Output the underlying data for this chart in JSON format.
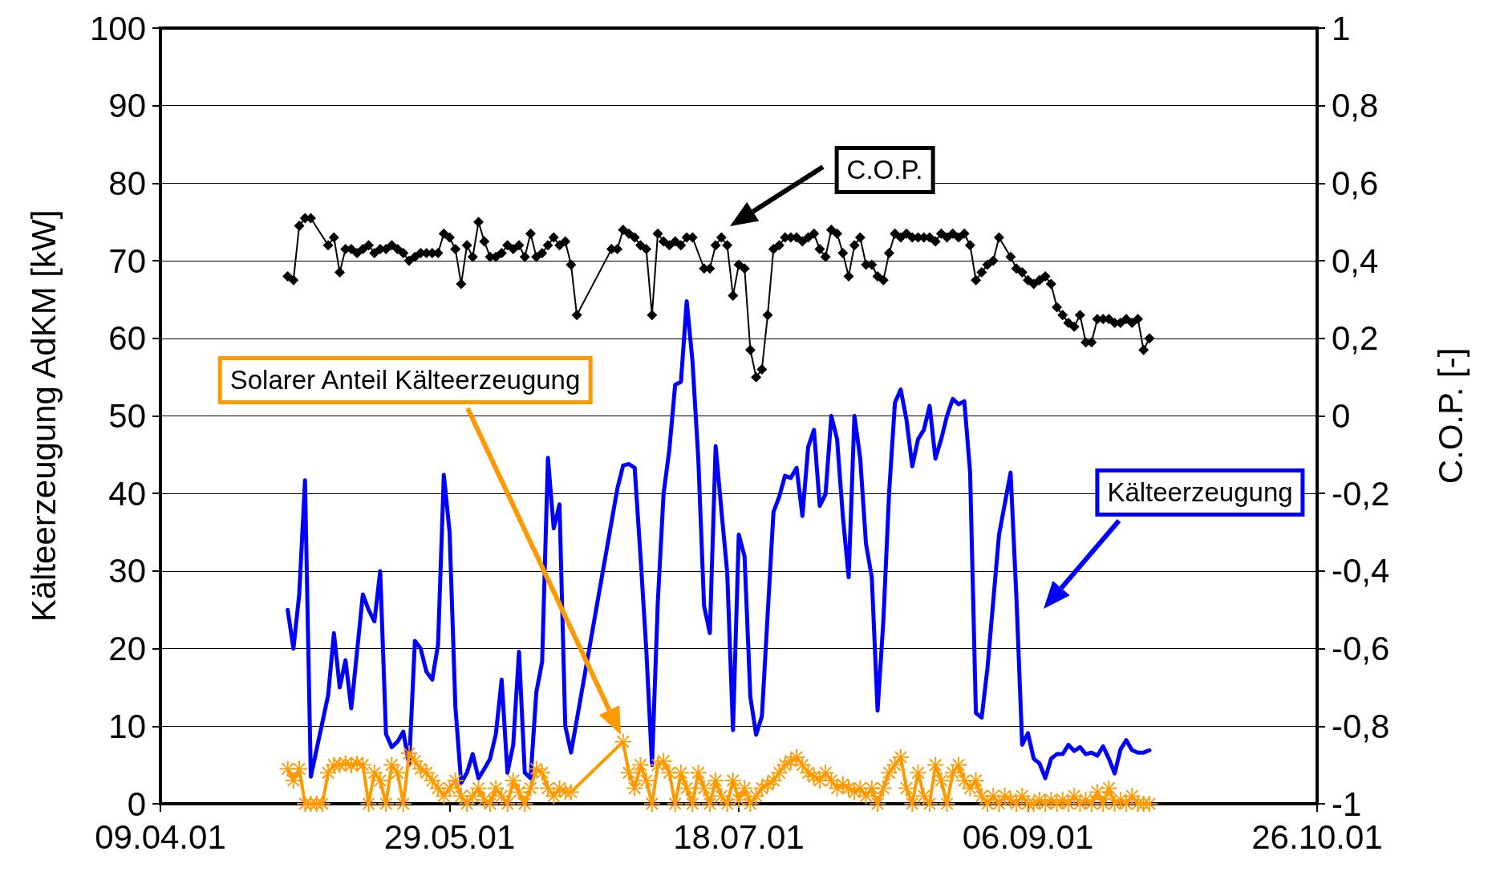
{
  "chart_data": {
    "type": "line",
    "ylabel": "Kälteerzeugung AdKM [kW]",
    "y2label": "C.O.P. [-]",
    "xlim": [
      "2001-04-09",
      "2001-10-26"
    ],
    "xticks": [
      {
        "value": "2001-04-09",
        "label": "09.04.01"
      },
      {
        "value": "2001-05-29",
        "label": "29.05.01"
      },
      {
        "value": "2001-07-18",
        "label": "18.07.01"
      },
      {
        "value": "2001-09-06",
        "label": "06.09.01"
      },
      {
        "value": "2001-10-26",
        "label": "26.10.01"
      }
    ],
    "ylim": [
      0,
      100
    ],
    "yticks": [
      0,
      10,
      20,
      30,
      40,
      50,
      60,
      70,
      80,
      90,
      100
    ],
    "y2lim": [
      -1,
      1
    ],
    "y2ticks": [
      -1,
      {
        "value": -0.8,
        "label": "-0,8"
      },
      {
        "value": -0.6,
        "label": "-0,6"
      },
      {
        "value": -0.4,
        "label": "-0,4"
      },
      {
        "value": -0.2,
        "label": "-0,2"
      },
      0,
      {
        "value": 0.2,
        "label": "0,2"
      },
      {
        "value": 0.4,
        "label": "0,4"
      },
      {
        "value": 0.6,
        "label": "0,6"
      },
      {
        "value": 0.8,
        "label": "0,8"
      },
      1
    ],
    "grid": "y",
    "series": [
      {
        "color": "#0000ff",
        "marker": "none",
        "x": [
          "2001-05-01",
          "2001-05-02",
          "2001-05-03",
          "2001-05-04",
          "2001-05-05",
          "2001-05-08",
          "2001-05-09",
          "2001-05-10",
          "2001-05-11",
          "2001-05-12",
          "2001-05-14",
          "2001-05-15",
          "2001-05-16",
          "2001-05-17",
          "2001-05-18",
          "2001-05-19",
          "2001-05-20",
          "2001-05-21",
          "2001-05-22",
          "2001-05-23",
          "2001-05-24",
          "2001-05-25",
          "2001-05-26",
          "2001-05-27",
          "2001-05-28",
          "2001-05-29",
          "2001-05-30",
          "2001-05-31",
          "2001-06-01",
          "2001-06-02",
          "2001-06-03",
          "2001-06-04",
          "2001-06-05",
          "2001-06-06",
          "2001-06-07",
          "2001-06-08",
          "2001-06-09",
          "2001-06-10",
          "2001-06-11",
          "2001-06-12",
          "2001-06-13",
          "2001-06-14",
          "2001-06-15",
          "2001-06-16",
          "2001-06-17",
          "2001-06-18",
          "2001-06-19",
          "2001-06-27",
          "2001-06-28",
          "2001-06-29",
          "2001-06-30",
          "2001-07-01",
          "2001-07-02",
          "2001-07-03",
          "2001-07-04",
          "2001-07-05",
          "2001-07-06",
          "2001-07-07",
          "2001-07-08",
          "2001-07-09",
          "2001-07-10",
          "2001-07-11",
          "2001-07-12",
          "2001-07-13",
          "2001-07-14",
          "2001-07-15",
          "2001-07-16",
          "2001-07-17",
          "2001-07-18",
          "2001-07-19",
          "2001-07-20",
          "2001-07-21",
          "2001-07-22",
          "2001-07-24",
          "2001-07-25",
          "2001-07-26",
          "2001-07-27",
          "2001-07-28",
          "2001-07-29",
          "2001-07-30",
          "2001-07-31",
          "2001-08-01",
          "2001-08-02",
          "2001-08-03",
          "2001-08-04",
          "2001-08-05",
          "2001-08-06",
          "2001-08-07",
          "2001-08-08",
          "2001-08-09",
          "2001-08-10",
          "2001-08-11",
          "2001-08-12",
          "2001-08-13",
          "2001-08-14",
          "2001-08-15",
          "2001-08-16",
          "2001-08-17",
          "2001-08-18",
          "2001-08-19",
          "2001-08-20",
          "2001-08-21",
          "2001-08-22",
          "2001-08-23",
          "2001-08-24",
          "2001-08-25",
          "2001-08-26",
          "2001-08-27",
          "2001-08-28",
          "2001-08-29",
          "2001-08-30",
          "2001-09-01",
          "2001-09-03",
          "2001-09-04",
          "2001-09-05",
          "2001-09-06",
          "2001-09-07",
          "2001-09-08",
          "2001-09-09",
          "2001-09-10",
          "2001-09-11",
          "2001-09-12",
          "2001-09-13",
          "2001-09-14",
          "2001-09-15",
          "2001-09-16",
          "2001-09-17",
          "2001-09-18",
          "2001-09-19",
          "2001-09-20",
          "2001-09-21",
          "2001-09-22",
          "2001-09-23",
          "2001-09-24",
          "2001-09-25",
          "2001-09-26",
          "2001-09-27"
        ],
        "values": [
          25,
          20,
          27,
          41.7,
          3.5,
          14,
          22,
          15,
          18.5,
          12.3,
          27,
          25,
          23.5,
          30,
          9,
          7.3,
          8,
          9.3,
          5,
          21,
          20,
          17,
          16,
          20.5,
          42.4,
          35,
          12.5,
          2.7,
          4,
          6.4,
          3.3,
          4.5,
          5.8,
          9,
          16,
          4,
          7.6,
          19.6,
          4,
          3.3,
          14.4,
          18.3,
          44.6,
          35.5,
          38.6,
          10,
          6.6,
          40.6,
          43.6,
          43.8,
          43.3,
          32,
          20,
          5,
          26,
          40,
          45.7,
          54,
          54.4,
          64.8,
          57,
          44.5,
          25.5,
          22,
          46.1,
          37.8,
          29.8,
          9.5,
          34.7,
          31.9,
          13.8,
          8.9,
          11.3,
          37.6,
          39.6,
          42.3,
          42,
          43.3,
          37.1,
          46,
          48.2,
          38.4,
          39.9,
          50,
          47,
          37,
          29.2,
          50,
          44.5,
          33.5,
          29.2,
          12,
          23.6,
          40.2,
          51.7,
          53.4,
          49.5,
          43.5,
          47,
          48.2,
          51.3,
          44.5,
          47,
          50,
          52.2,
          51.5,
          51.9,
          42.7,
          11.7,
          11.1,
          17.5,
          34.7,
          42.7,
          26.7,
          7.6,
          9.1,
          5.8,
          5.2,
          3.3,
          5.8,
          6.4,
          6.4,
          7.6,
          6.8,
          7.3,
          6.4,
          6.6,
          6.2,
          7.4,
          5.8,
          3.9,
          7,
          8.2,
          6.9,
          6.6,
          6.6,
          6.9
        ]
      },
      {
        "color": "#000000",
        "marker": "diamond",
        "axis": "y2",
        "x": [
          "2001-05-01",
          "2001-05-02",
          "2001-05-03",
          "2001-05-04",
          "2001-05-05",
          "2001-05-08",
          "2001-05-09",
          "2001-05-10",
          "2001-05-11",
          "2001-05-12",
          "2001-05-13",
          "2001-05-14",
          "2001-05-15",
          "2001-05-16",
          "2001-05-17",
          "2001-05-18",
          "2001-05-19",
          "2001-05-20",
          "2001-05-21",
          "2001-05-22",
          "2001-05-23",
          "2001-05-24",
          "2001-05-25",
          "2001-05-26",
          "2001-05-27",
          "2001-05-28",
          "2001-05-29",
          "2001-05-30",
          "2001-05-31",
          "2001-06-01",
          "2001-06-02",
          "2001-06-03",
          "2001-06-04",
          "2001-06-05",
          "2001-06-06",
          "2001-06-07",
          "2001-06-08",
          "2001-06-09",
          "2001-06-10",
          "2001-06-11",
          "2001-06-12",
          "2001-06-13",
          "2001-06-14",
          "2001-06-15",
          "2001-06-16",
          "2001-06-17",
          "2001-06-18",
          "2001-06-19",
          "2001-06-20",
          "2001-06-26",
          "2001-06-27",
          "2001-06-28",
          "2001-06-29",
          "2001-06-30",
          "2001-07-01",
          "2001-07-02",
          "2001-07-03",
          "2001-07-04",
          "2001-07-05",
          "2001-07-06",
          "2001-07-07",
          "2001-07-08",
          "2001-07-09",
          "2001-07-10",
          "2001-07-12",
          "2001-07-13",
          "2001-07-14",
          "2001-07-15",
          "2001-07-16",
          "2001-07-17",
          "2001-07-18",
          "2001-07-19",
          "2001-07-20",
          "2001-07-21",
          "2001-07-22",
          "2001-07-23",
          "2001-07-24",
          "2001-07-25",
          "2001-07-26",
          "2001-07-27",
          "2001-07-28",
          "2001-07-29",
          "2001-07-30",
          "2001-07-31",
          "2001-08-01",
          "2001-08-02",
          "2001-08-03",
          "2001-08-04",
          "2001-08-05",
          "2001-08-06",
          "2001-08-07",
          "2001-08-08",
          "2001-08-09",
          "2001-08-10",
          "2001-08-11",
          "2001-08-12",
          "2001-08-13",
          "2001-08-14",
          "2001-08-15",
          "2001-08-16",
          "2001-08-17",
          "2001-08-18",
          "2001-08-19",
          "2001-08-20",
          "2001-08-21",
          "2001-08-22",
          "2001-08-23",
          "2001-08-24",
          "2001-08-25",
          "2001-08-26",
          "2001-08-27",
          "2001-08-28",
          "2001-08-29",
          "2001-08-30",
          "2001-08-31",
          "2001-09-01",
          "2001-09-03",
          "2001-09-04",
          "2001-09-05",
          "2001-09-06",
          "2001-09-07",
          "2001-09-08",
          "2001-09-09",
          "2001-09-10",
          "2001-09-11",
          "2001-09-12",
          "2001-09-13",
          "2001-09-14",
          "2001-09-15",
          "2001-09-16",
          "2001-09-17",
          "2001-09-18",
          "2001-09-19",
          "2001-09-20",
          "2001-09-21",
          "2001-09-22",
          "2001-09-23",
          "2001-09-24",
          "2001-09-25",
          "2001-09-26",
          "2001-09-27"
        ],
        "values": [
          0.36,
          0.35,
          0.49,
          0.51,
          0.51,
          0.44,
          0.46,
          0.37,
          0.43,
          0.43,
          0.42,
          0.43,
          0.44,
          0.42,
          0.43,
          0.43,
          0.44,
          0.43,
          0.42,
          0.4,
          0.41,
          0.42,
          0.42,
          0.42,
          0.42,
          0.47,
          0.46,
          0.43,
          0.34,
          0.44,
          0.41,
          0.5,
          0.45,
          0.41,
          0.41,
          0.42,
          0.44,
          0.43,
          0.44,
          0.41,
          0.47,
          0.41,
          0.42,
          0.44,
          0.46,
          0.44,
          0.45,
          0.39,
          0.26,
          0.43,
          0.43,
          0.48,
          0.47,
          0.46,
          0.44,
          0.43,
          0.26,
          0.47,
          0.45,
          0.44,
          0.45,
          0.44,
          0.46,
          0.46,
          0.38,
          0.38,
          0.44,
          0.46,
          0.44,
          0.31,
          0.39,
          0.38,
          0.17,
          0.1,
          0.12,
          0.26,
          0.43,
          0.44,
          0.46,
          0.46,
          0.46,
          0.45,
          0.46,
          0.47,
          0.43,
          0.41,
          0.48,
          0.47,
          0.42,
          0.36,
          0.44,
          0.46,
          0.39,
          0.39,
          0.36,
          0.35,
          0.42,
          0.47,
          0.46,
          0.47,
          0.46,
          0.46,
          0.46,
          0.46,
          0.45,
          0.47,
          0.46,
          0.47,
          0.46,
          0.47,
          0.44,
          0.35,
          0.37,
          0.39,
          0.4,
          0.46,
          0.41,
          0.38,
          0.37,
          0.35,
          0.34,
          0.35,
          0.36,
          0.34,
          0.28,
          0.26,
          0.24,
          0.23,
          0.26,
          0.19,
          0.19,
          0.25,
          0.25,
          0.25,
          0.24,
          0.24,
          0.25,
          0.24,
          0.25,
          0.17,
          0.2
        ]
      },
      {
        "color": "#ff9900",
        "marker": "star",
        "x": [
          "2001-05-01",
          "2001-05-02",
          "2001-05-03",
          "2001-05-04",
          "2001-05-05",
          "2001-05-06",
          "2001-05-07",
          "2001-05-08",
          "2001-05-09",
          "2001-05-10",
          "2001-05-11",
          "2001-05-12",
          "2001-05-13",
          "2001-05-14",
          "2001-05-15",
          "2001-05-16",
          "2001-05-17",
          "2001-05-18",
          "2001-05-19",
          "2001-05-20",
          "2001-05-21",
          "2001-05-22",
          "2001-05-23",
          "2001-05-24",
          "2001-05-25",
          "2001-05-26",
          "2001-05-27",
          "2001-05-28",
          "2001-05-29",
          "2001-05-30",
          "2001-05-31",
          "2001-06-01",
          "2001-06-02",
          "2001-06-03",
          "2001-06-04",
          "2001-06-05",
          "2001-06-06",
          "2001-06-07",
          "2001-06-08",
          "2001-06-09",
          "2001-06-10",
          "2001-06-11",
          "2001-06-12",
          "2001-06-13",
          "2001-06-14",
          "2001-06-15",
          "2001-06-16",
          "2001-06-17",
          "2001-06-18",
          "2001-06-19",
          "2001-06-28",
          "2001-06-29",
          "2001-06-30",
          "2001-07-01",
          "2001-07-02",
          "2001-07-03",
          "2001-07-04",
          "2001-07-05",
          "2001-07-06",
          "2001-07-07",
          "2001-07-08",
          "2001-07-09",
          "2001-07-10",
          "2001-07-11",
          "2001-07-12",
          "2001-07-13",
          "2001-07-14",
          "2001-07-15",
          "2001-07-16",
          "2001-07-17",
          "2001-07-18",
          "2001-07-19",
          "2001-07-20",
          "2001-07-21",
          "2001-07-22",
          "2001-07-23",
          "2001-07-24",
          "2001-07-25",
          "2001-07-26",
          "2001-07-27",
          "2001-07-28",
          "2001-07-29",
          "2001-07-30",
          "2001-07-31",
          "2001-08-01",
          "2001-08-02",
          "2001-08-03",
          "2001-08-04",
          "2001-08-05",
          "2001-08-06",
          "2001-08-07",
          "2001-08-08",
          "2001-08-09",
          "2001-08-10",
          "2001-08-11",
          "2001-08-12",
          "2001-08-13",
          "2001-08-14",
          "2001-08-15",
          "2001-08-16",
          "2001-08-17",
          "2001-08-18",
          "2001-08-19",
          "2001-08-20",
          "2001-08-21",
          "2001-08-22",
          "2001-08-23",
          "2001-08-24",
          "2001-08-25",
          "2001-08-26",
          "2001-08-27",
          "2001-08-28",
          "2001-08-29",
          "2001-08-30",
          "2001-08-31",
          "2001-09-01",
          "2001-09-02",
          "2001-09-03",
          "2001-09-04",
          "2001-09-05",
          "2001-09-06",
          "2001-09-07",
          "2001-09-08",
          "2001-09-09",
          "2001-09-10",
          "2001-09-11",
          "2001-09-12",
          "2001-09-13",
          "2001-09-14",
          "2001-09-15",
          "2001-09-16",
          "2001-09-17",
          "2001-09-18",
          "2001-09-19",
          "2001-09-20",
          "2001-09-21",
          "2001-09-22",
          "2001-09-23",
          "2001-09-24",
          "2001-09-25",
          "2001-09-26",
          "2001-09-27"
        ],
        "values": [
          4.5,
          3,
          4.5,
          0,
          0,
          0,
          0,
          4,
          5,
          5,
          5.2,
          5,
          5.2,
          5,
          0,
          4,
          3,
          0,
          5,
          4,
          0,
          6.5,
          5.5,
          4.5,
          4,
          3,
          2,
          1,
          2,
          3,
          1,
          0,
          1,
          2,
          0.5,
          0,
          2,
          1,
          0,
          3,
          1.5,
          0,
          2,
          4.5,
          4,
          2,
          1,
          2,
          1.5,
          1.5,
          8,
          4,
          2,
          5,
          3,
          0,
          5,
          5.5,
          4,
          0,
          4,
          2,
          0,
          4,
          2,
          0,
          3,
          1,
          0,
          3,
          0.5,
          2,
          0,
          1,
          2,
          2.5,
          3,
          4,
          5,
          5.5,
          6,
          5,
          4,
          3.5,
          3,
          4,
          3,
          2,
          2.5,
          2,
          1.5,
          2,
          1,
          2,
          0,
          2,
          4,
          5,
          6,
          2,
          0,
          4,
          1,
          0,
          5,
          3,
          0,
          4,
          5,
          3,
          2,
          3,
          1,
          0,
          1,
          0,
          1,
          0.5,
          0,
          1,
          0,
          0,
          0.5,
          0,
          0.5,
          0,
          0.5,
          0,
          1,
          0,
          0.5,
          0,
          1.5,
          0,
          2,
          0,
          0.5,
          0,
          1,
          0,
          0,
          0
        ]
      }
    ],
    "annotations": [
      "Kälteerzeugung",
      "C.O.P.",
      "Solarer Anteil Kälteerzeugung"
    ]
  }
}
